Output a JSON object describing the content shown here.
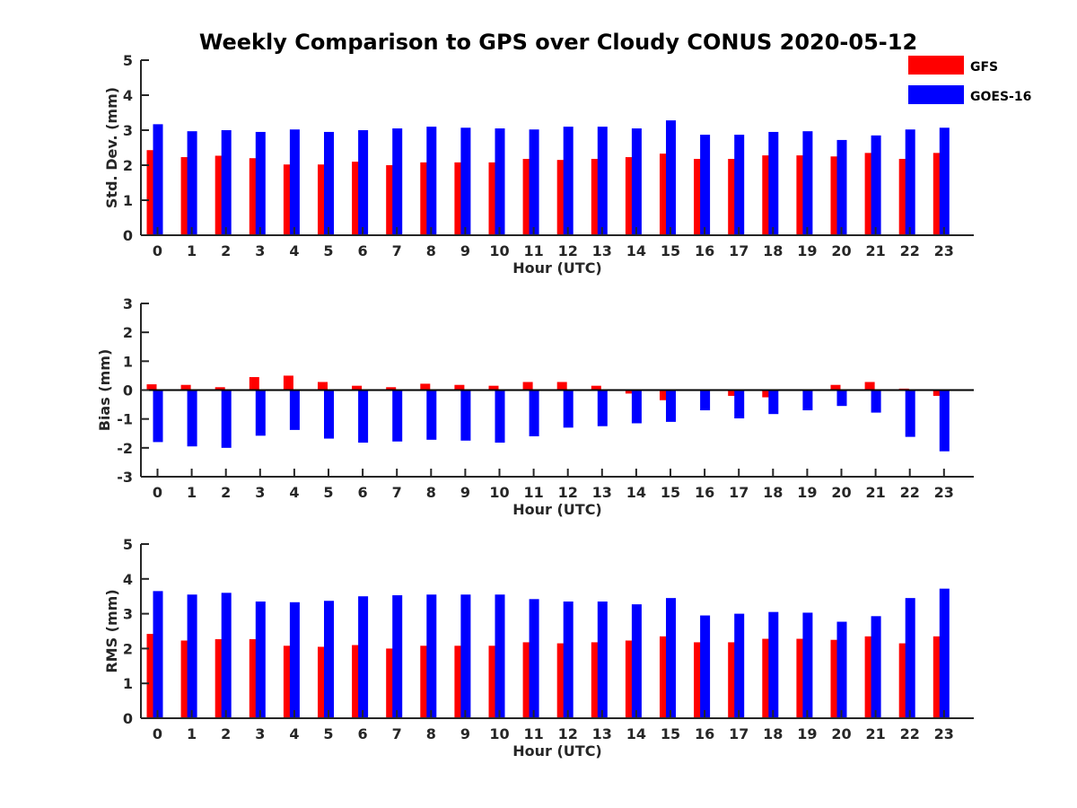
{
  "title": "Weekly Comparison to GPS over Cloudy CONUS 2020-05-12",
  "legend": [
    {
      "name": "GFS",
      "color": "#ff0000"
    },
    {
      "name": "GOES-16",
      "color": "#0000ff"
    }
  ],
  "chart_data": [
    {
      "type": "bar",
      "xlabel": "Hour (UTC)",
      "ylabel": "Std. Dev. (mm)",
      "ylim": [
        0,
        5
      ],
      "yticks": [
        0,
        1,
        2,
        3,
        4,
        5
      ],
      "categories": [
        "0",
        "1",
        "2",
        "3",
        "4",
        "5",
        "6",
        "7",
        "8",
        "9",
        "10",
        "11",
        "12",
        "13",
        "14",
        "15",
        "16",
        "17",
        "18",
        "19",
        "20",
        "21",
        "22",
        "23"
      ],
      "series": [
        {
          "name": "GFS",
          "color": "#ff0000",
          "values": [
            2.43,
            2.23,
            2.27,
            2.2,
            2.02,
            2.02,
            2.1,
            2.0,
            2.08,
            2.08,
            2.08,
            2.18,
            2.15,
            2.18,
            2.23,
            2.33,
            2.18,
            2.18,
            2.28,
            2.28,
            2.25,
            2.35,
            2.18,
            2.35
          ]
        },
        {
          "name": "GOES-16",
          "color": "#0000ff",
          "values": [
            3.17,
            2.97,
            3.0,
            2.95,
            3.02,
            2.95,
            3.0,
            3.05,
            3.1,
            3.07,
            3.05,
            3.02,
            3.1,
            3.1,
            3.05,
            3.28,
            2.87,
            2.87,
            2.95,
            2.97,
            2.72,
            2.85,
            3.02,
            3.07
          ]
        }
      ],
      "legend_position": "top-right"
    },
    {
      "type": "bar",
      "xlabel": "Hour (UTC)",
      "ylabel": "Bias (mm)",
      "ylim": [
        -3,
        3
      ],
      "yticks": [
        -3,
        -2,
        -1,
        0,
        1,
        2,
        3
      ],
      "categories": [
        "0",
        "1",
        "2",
        "3",
        "4",
        "5",
        "6",
        "7",
        "8",
        "9",
        "10",
        "11",
        "12",
        "13",
        "14",
        "15",
        "16",
        "17",
        "18",
        "19",
        "20",
        "21",
        "22",
        "23"
      ],
      "series": [
        {
          "name": "GFS",
          "color": "#ff0000",
          "values": [
            0.2,
            0.18,
            0.1,
            0.45,
            0.5,
            0.28,
            0.15,
            0.1,
            0.22,
            0.18,
            0.15,
            0.28,
            0.28,
            0.15,
            -0.12,
            -0.35,
            0.0,
            -0.2,
            -0.25,
            0.02,
            0.18,
            0.28,
            0.05,
            -0.2
          ]
        },
        {
          "name": "GOES-16",
          "color": "#0000ff",
          "values": [
            -1.8,
            -1.95,
            -2.0,
            -1.58,
            -1.38,
            -1.68,
            -1.82,
            -1.78,
            -1.72,
            -1.75,
            -1.82,
            -1.6,
            -1.3,
            -1.25,
            -1.15,
            -1.1,
            -0.7,
            -0.98,
            -0.83,
            -0.7,
            -0.55,
            -0.78,
            -1.62,
            -2.12
          ]
        }
      ]
    },
    {
      "type": "bar",
      "xlabel": "Hour (UTC)",
      "ylabel": "RMS (mm)",
      "ylim": [
        0,
        5
      ],
      "yticks": [
        0,
        1,
        2,
        3,
        4,
        5
      ],
      "categories": [
        "0",
        "1",
        "2",
        "3",
        "4",
        "5",
        "6",
        "7",
        "8",
        "9",
        "10",
        "11",
        "12",
        "13",
        "14",
        "15",
        "16",
        "17",
        "18",
        "19",
        "20",
        "21",
        "22",
        "23"
      ],
      "series": [
        {
          "name": "GFS",
          "color": "#ff0000",
          "values": [
            2.42,
            2.23,
            2.27,
            2.27,
            2.08,
            2.05,
            2.1,
            2.0,
            2.08,
            2.08,
            2.08,
            2.18,
            2.15,
            2.18,
            2.23,
            2.35,
            2.18,
            2.18,
            2.28,
            2.28,
            2.25,
            2.35,
            2.15,
            2.35
          ]
        },
        {
          "name": "GOES-16",
          "color": "#0000ff",
          "values": [
            3.65,
            3.55,
            3.6,
            3.35,
            3.33,
            3.37,
            3.5,
            3.53,
            3.55,
            3.55,
            3.55,
            3.42,
            3.35,
            3.35,
            3.27,
            3.45,
            2.95,
            3.0,
            3.05,
            3.03,
            2.77,
            2.93,
            3.45,
            3.72
          ]
        }
      ]
    }
  ]
}
